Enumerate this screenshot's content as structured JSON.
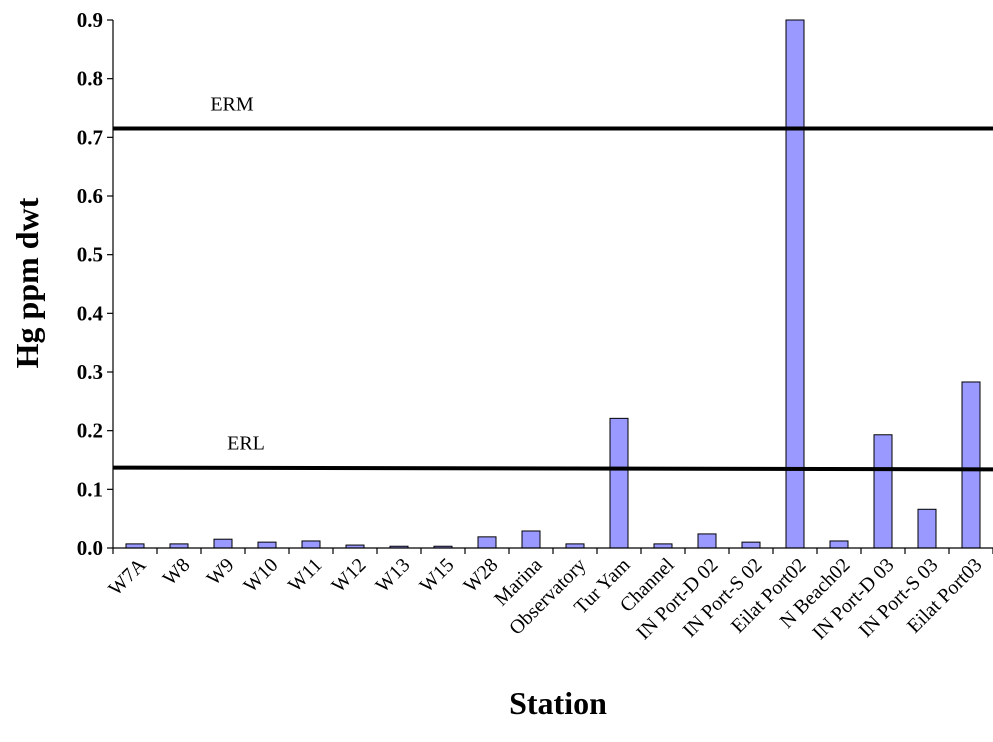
{
  "chart_data": {
    "type": "bar",
    "title": "",
    "xlabel": "Station",
    "ylabel": "Hg ppm dwt",
    "ylim": [
      0,
      0.9
    ],
    "yticks": [
      "0.0",
      "0.1",
      "0.2",
      "0.3",
      "0.4",
      "0.5",
      "0.6",
      "0.7",
      "0.8",
      "0.9"
    ],
    "grid": false,
    "legend": "none",
    "bar_color": "#9999ff",
    "categories": [
      "W7A",
      "W8",
      "W9",
      "W10",
      "W11",
      "W12",
      "W13",
      "W15",
      "W28",
      "Marina",
      "Observatory",
      "Tur Yam",
      "Channel",
      "IN Port-D 02",
      "IN Port-S 02",
      "Eilat Port02",
      "N Beach02",
      "IN Port-D 03",
      "IN Port-S 03",
      "Eilat Port03"
    ],
    "values": [
      0.007,
      0.007,
      0.015,
      0.01,
      0.012,
      0.005,
      0.003,
      0.003,
      0.019,
      0.029,
      0.007,
      0.221,
      0.007,
      0.024,
      0.01,
      0.9,
      0.012,
      0.193,
      0.066,
      0.283
    ],
    "reference_lines": [
      {
        "label": "ERM",
        "start": 0.715,
        "end": 0.715
      },
      {
        "label": "ERL",
        "start": 0.137,
        "end": 0.134
      }
    ]
  }
}
